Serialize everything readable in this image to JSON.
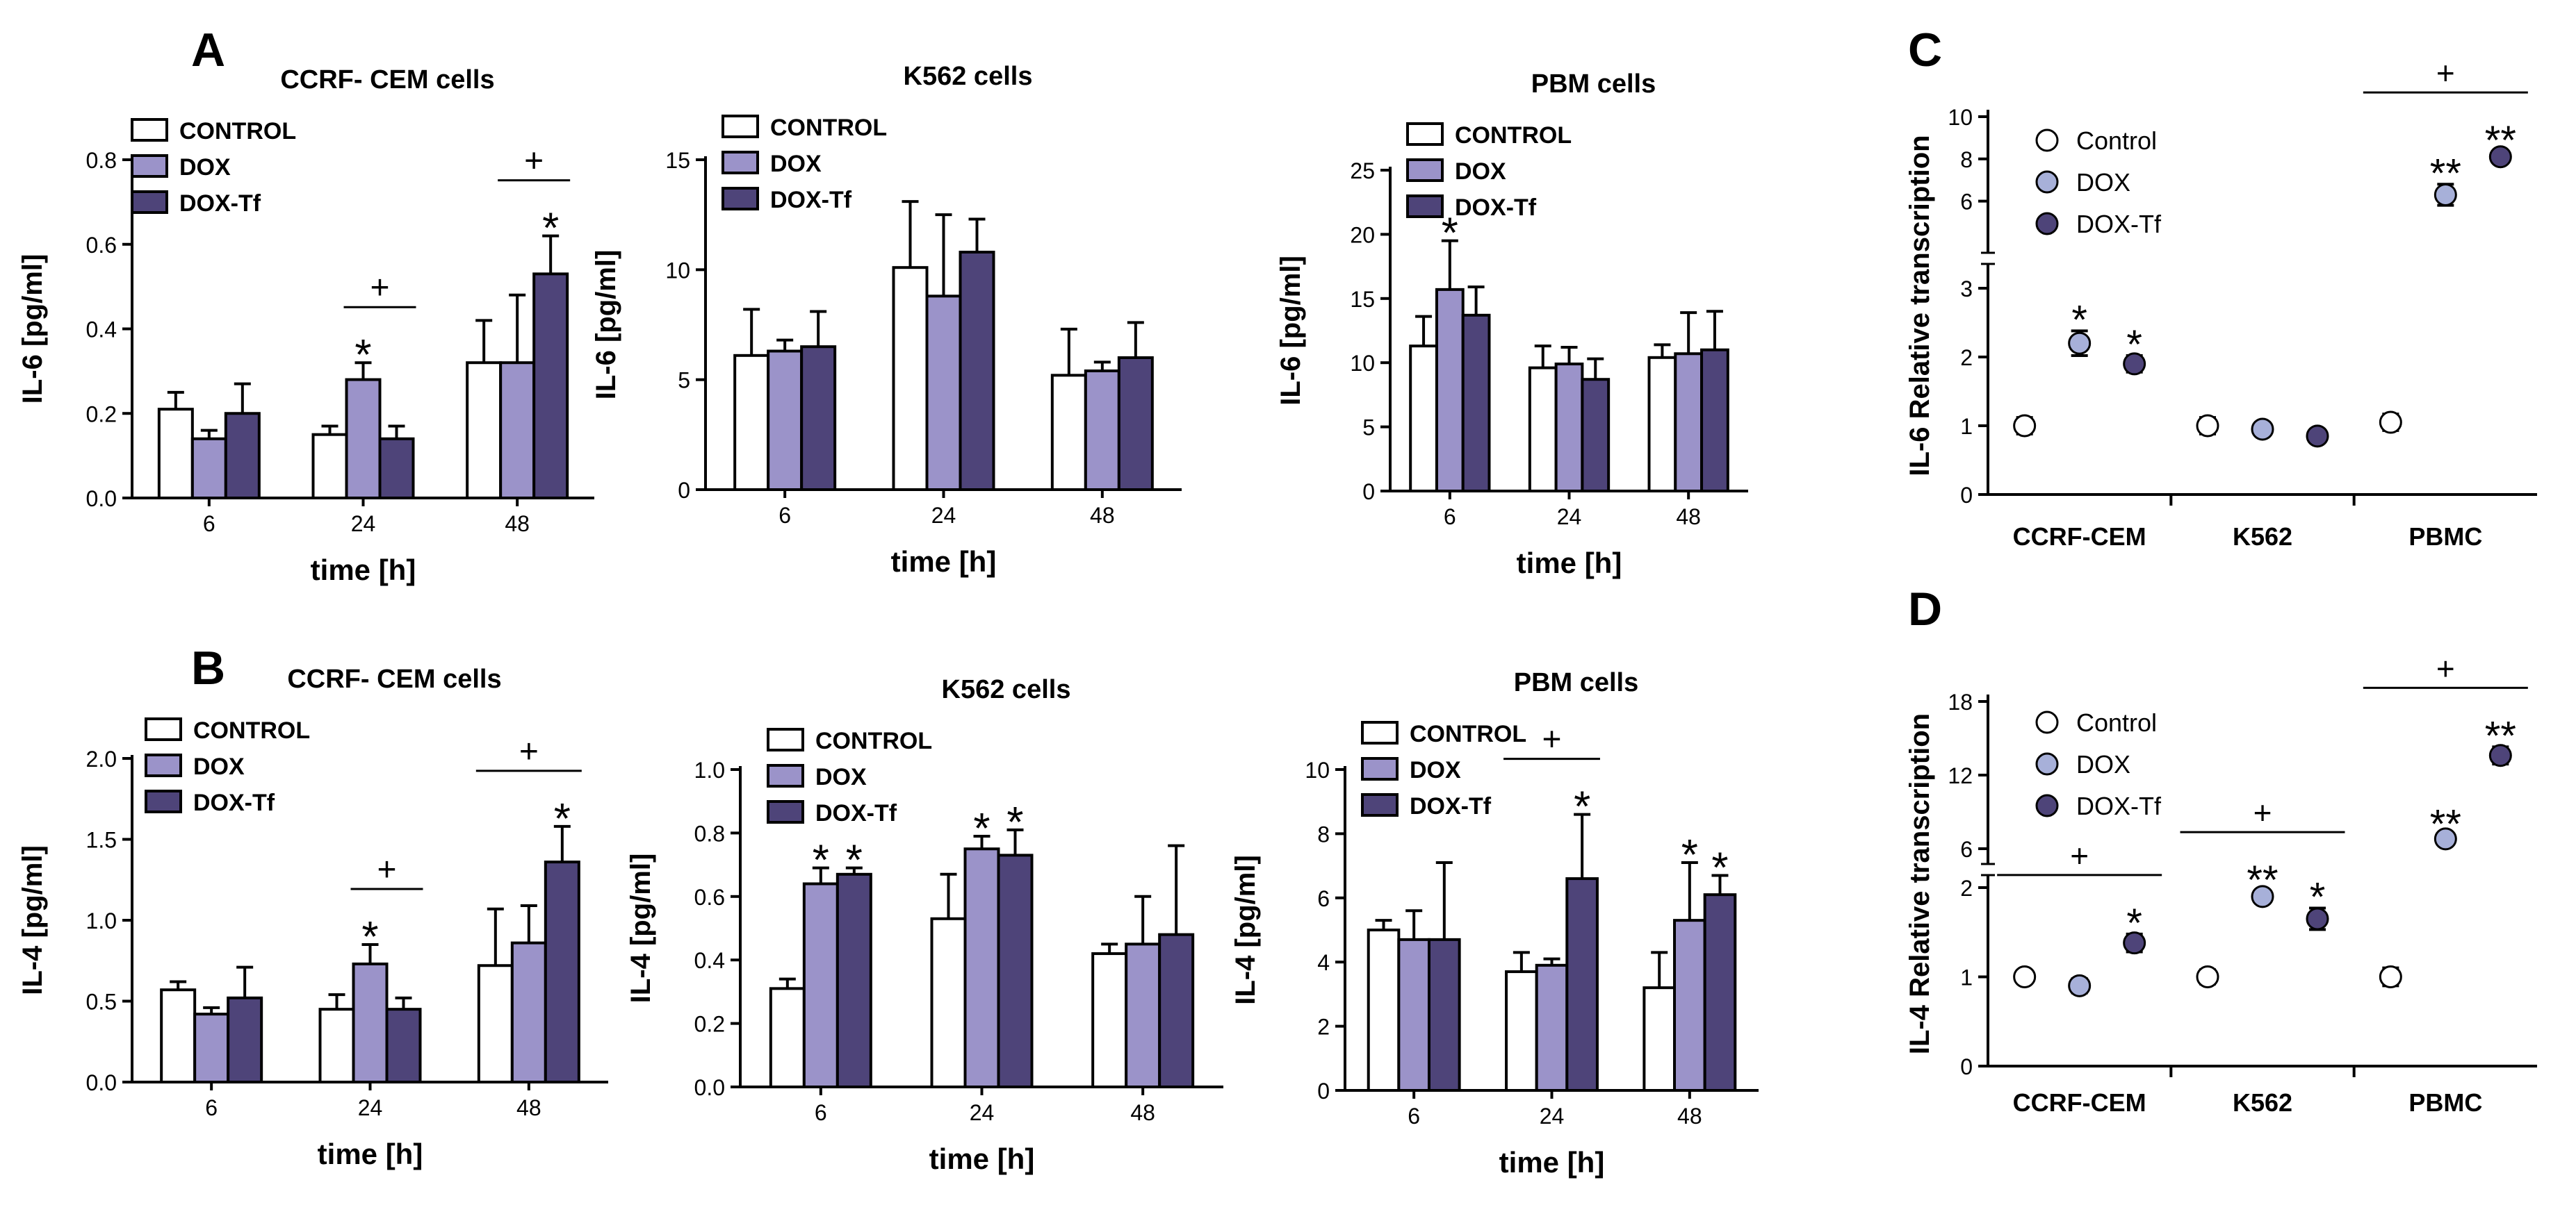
{
  "figure": {
    "panel_letters": [
      "A",
      "B",
      "C",
      "D"
    ],
    "colors": {
      "control": "#ffffff",
      "dox": "#9b93c9",
      "doxtf": "#4e4479",
      "axis": "#000000"
    }
  },
  "chart_data": [
    {
      "id": "A1",
      "panel": "A",
      "type": "bar",
      "title": "CCRF- CEM cells",
      "xlabel": "time [h]",
      "ylabel": "IL-6 [pg/ml]",
      "categories": [
        "6",
        "24",
        "48"
      ],
      "ylim": [
        0,
        0.8
      ],
      "yticks": [
        0,
        0.2,
        0.4,
        0.6,
        0.8
      ],
      "ytick_labels": [
        "0.0",
        "0.2",
        "0.4",
        "0.6",
        "0.8"
      ],
      "legend": [
        "CONTROL",
        "DOX",
        "DOX-Tf"
      ],
      "series": [
        {
          "name": "CONTROL",
          "values": [
            0.21,
            0.15,
            0.32
          ],
          "errors": [
            0.04,
            0.02,
            0.1
          ]
        },
        {
          "name": "DOX",
          "values": [
            0.14,
            0.28,
            0.32
          ],
          "errors": [
            0.02,
            0.04,
            0.16
          ]
        },
        {
          "name": "DOX-Tf",
          "values": [
            0.2,
            0.14,
            0.53
          ],
          "errors": [
            0.07,
            0.03,
            0.09
          ]
        }
      ],
      "star_marks": [
        {
          "group": 1,
          "series": 1,
          "text": "*"
        },
        {
          "group": 2,
          "series": 2,
          "text": "*"
        }
      ],
      "plus_marks": [
        {
          "from": [
            1,
            1
          ],
          "to": [
            1,
            2
          ],
          "text": "+"
        },
        {
          "from": [
            2,
            1
          ],
          "to": [
            2,
            2
          ],
          "text": "+"
        }
      ]
    },
    {
      "id": "A2",
      "panel": "A",
      "type": "bar",
      "title": "K562 cells",
      "xlabel": "time [h]",
      "ylabel": "IL-6 [pg/ml]",
      "categories": [
        "6",
        "24",
        "48"
      ],
      "ylim": [
        0,
        15
      ],
      "yticks": [
        0,
        5,
        10,
        15
      ],
      "ytick_labels": [
        "0",
        "5",
        "10",
        "15"
      ],
      "legend": [
        "CONTROL",
        "DOX",
        "DOX-Tf"
      ],
      "series": [
        {
          "name": "CONTROL",
          "values": [
            6.1,
            10.1,
            5.2
          ],
          "errors": [
            2.1,
            3.0,
            2.1
          ]
        },
        {
          "name": "DOX",
          "values": [
            6.3,
            8.8,
            5.4
          ],
          "errors": [
            0.5,
            3.7,
            0.4
          ]
        },
        {
          "name": "DOX-Tf",
          "values": [
            6.5,
            10.8,
            6.0
          ],
          "errors": [
            1.6,
            1.5,
            1.6
          ]
        }
      ],
      "star_marks": [],
      "plus_marks": []
    },
    {
      "id": "A3",
      "panel": "A",
      "type": "bar",
      "title": "PBM cells",
      "xlabel": "time [h]",
      "ylabel": "IL-6 [pg/ml]",
      "categories": [
        "6",
        "24",
        "48"
      ],
      "ylim": [
        0,
        25
      ],
      "yticks": [
        0,
        5,
        10,
        15,
        20,
        25
      ],
      "ytick_labels": [
        "0",
        "5",
        "10",
        "15",
        "20",
        "25"
      ],
      "legend": [
        "CONTROL",
        "DOX",
        "DOX-Tf"
      ],
      "series": [
        {
          "name": "CONTROL",
          "values": [
            11.3,
            9.6,
            10.4
          ],
          "errors": [
            2.3,
            1.7,
            1.0
          ]
        },
        {
          "name": "DOX",
          "values": [
            15.7,
            9.9,
            10.7
          ],
          "errors": [
            3.8,
            1.3,
            3.2
          ]
        },
        {
          "name": "DOX-Tf",
          "values": [
            13.7,
            8.7,
            11.0
          ],
          "errors": [
            2.2,
            1.6,
            3.0
          ]
        }
      ],
      "star_marks": [
        {
          "group": 0,
          "series": 1,
          "text": "*"
        }
      ],
      "plus_marks": []
    },
    {
      "id": "B1",
      "panel": "B",
      "type": "bar",
      "title": "CCRF- CEM cells",
      "xlabel": "time [h]",
      "ylabel": "IL-4 [pg/ml]",
      "categories": [
        "6",
        "24",
        "48"
      ],
      "ylim": [
        0,
        2.0
      ],
      "yticks": [
        0,
        0.5,
        1.0,
        1.5,
        2.0
      ],
      "ytick_labels": [
        "0.0",
        "0.5",
        "1.0",
        "1.5",
        "2.0"
      ],
      "legend": [
        "CONTROL",
        "DOX",
        "DOX-Tf"
      ],
      "series": [
        {
          "name": "CONTROL",
          "values": [
            0.57,
            0.45,
            0.72
          ],
          "errors": [
            0.05,
            0.09,
            0.35
          ]
        },
        {
          "name": "DOX",
          "values": [
            0.42,
            0.73,
            0.86
          ],
          "errors": [
            0.04,
            0.12,
            0.23
          ]
        },
        {
          "name": "DOX-Tf",
          "values": [
            0.52,
            0.45,
            1.36
          ],
          "errors": [
            0.19,
            0.07,
            0.22
          ]
        }
      ],
      "star_marks": [
        {
          "group": 1,
          "series": 1,
          "text": "*"
        },
        {
          "group": 2,
          "series": 2,
          "text": "*"
        }
      ],
      "plus_marks": [
        {
          "from": [
            1,
            1
          ],
          "to": [
            1,
            2
          ],
          "text": "+"
        },
        {
          "from": [
            2,
            0
          ],
          "to": [
            2,
            2
          ],
          "text": "+"
        }
      ]
    },
    {
      "id": "B2",
      "panel": "B",
      "type": "bar",
      "title": "K562 cells",
      "xlabel": "time [h]",
      "ylabel": "IL-4 [pg/ml]",
      "categories": [
        "6",
        "24",
        "48"
      ],
      "ylim": [
        0,
        1.0
      ],
      "yticks": [
        0,
        0.2,
        0.4,
        0.6,
        0.8,
        1.0
      ],
      "ytick_labels": [
        "0.0",
        "0.2",
        "0.4",
        "0.6",
        "0.8",
        "1.0"
      ],
      "legend": [
        "CONTROL",
        "DOX",
        "DOX-Tf"
      ],
      "series": [
        {
          "name": "CONTROL",
          "values": [
            0.31,
            0.53,
            0.42
          ],
          "errors": [
            0.03,
            0.14,
            0.03
          ]
        },
        {
          "name": "DOX",
          "values": [
            0.64,
            0.75,
            0.45
          ],
          "errors": [
            0.05,
            0.04,
            0.15
          ]
        },
        {
          "name": "DOX-Tf",
          "values": [
            0.67,
            0.73,
            0.48
          ],
          "errors": [
            0.02,
            0.08,
            0.28
          ]
        }
      ],
      "star_marks": [
        {
          "group": 0,
          "series": 1,
          "text": "*"
        },
        {
          "group": 0,
          "series": 2,
          "text": "*"
        },
        {
          "group": 1,
          "series": 1,
          "text": "*"
        },
        {
          "group": 1,
          "series": 2,
          "text": "*"
        }
      ],
      "plus_marks": []
    },
    {
      "id": "B3",
      "panel": "B",
      "type": "bar",
      "title": "PBM cells",
      "xlabel": "time [h]",
      "ylabel": "IL-4 [pg/ml]",
      "categories": [
        "6",
        "24",
        "48"
      ],
      "ylim": [
        0,
        10
      ],
      "yticks": [
        0,
        2,
        4,
        6,
        8,
        10
      ],
      "ytick_labels": [
        "0",
        "2",
        "4",
        "6",
        "8",
        "10"
      ],
      "legend": [
        "CONTROL",
        "DOX",
        "DOX-Tf"
      ],
      "series": [
        {
          "name": "CONTROL",
          "values": [
            5.0,
            3.7,
            3.2
          ],
          "errors": [
            0.3,
            0.6,
            1.1
          ]
        },
        {
          "name": "DOX",
          "values": [
            4.7,
            3.9,
            5.3
          ],
          "errors": [
            0.9,
            0.2,
            1.8
          ]
        },
        {
          "name": "DOX-Tf",
          "values": [
            4.7,
            6.6,
            6.1
          ],
          "errors": [
            2.4,
            2.0,
            0.6
          ]
        }
      ],
      "star_marks": [
        {
          "group": 1,
          "series": 2,
          "text": "*"
        },
        {
          "group": 2,
          "series": 1,
          "text": "*"
        },
        {
          "group": 2,
          "series": 2,
          "text": "*"
        }
      ],
      "plus_marks": [
        {
          "from": [
            1,
            0
          ],
          "to": [
            1,
            2
          ],
          "text": "+"
        }
      ]
    },
    {
      "id": "C",
      "panel": "C",
      "type": "scatter",
      "title": "",
      "xlabel": "",
      "ylabel": "IL-6 Relative transcription",
      "categories": [
        "CCRF-CEM",
        "K562",
        "PBMC"
      ],
      "legend": [
        "Control",
        "DOX",
        "DOX-Tf"
      ],
      "axis_break": {
        "lower": [
          0,
          3
        ],
        "upper": [
          5,
          10
        ]
      },
      "yticks_lower": [
        0,
        1,
        2,
        3
      ],
      "ytick_labels_lower": [
        "0",
        "1",
        "2",
        "3"
      ],
      "yticks_upper": [
        6,
        8,
        10
      ],
      "ytick_labels_upper": [
        "6",
        "8",
        "10"
      ],
      "series": [
        {
          "name": "Control",
          "values": [
            1.0,
            1.0,
            1.05
          ],
          "errors": [
            0.12,
            0.12,
            0.12
          ]
        },
        {
          "name": "DOX",
          "values": [
            2.2,
            0.95,
            6.3
          ],
          "errors": [
            0.18,
            0.08,
            0.5
          ]
        },
        {
          "name": "DOX-Tf",
          "values": [
            1.9,
            0.85,
            8.1
          ],
          "errors": [
            0.12,
            0.06,
            0.25
          ]
        }
      ],
      "star_marks": [
        {
          "group": 0,
          "series": 1,
          "text": "*"
        },
        {
          "group": 0,
          "series": 2,
          "text": "*"
        },
        {
          "group": 2,
          "series": 1,
          "text": "**"
        },
        {
          "group": 2,
          "series": 2,
          "text": "**"
        }
      ],
      "plus_marks": [
        {
          "group": 2,
          "text": "+"
        }
      ]
    },
    {
      "id": "D",
      "panel": "D",
      "type": "scatter",
      "title": "",
      "xlabel": "",
      "ylabel": "IL-4 Relative transcription",
      "categories": [
        "CCRF-CEM",
        "K562",
        "PBMC"
      ],
      "legend": [
        "Control",
        "DOX",
        "DOX-Tf"
      ],
      "axis_break": {
        "lower": [
          0,
          2
        ],
        "upper": [
          6,
          18
        ]
      },
      "yticks_lower": [
        0,
        1,
        2
      ],
      "ytick_labels_lower": [
        "0",
        "1",
        "2"
      ],
      "yticks_upper": [
        6,
        12,
        18
      ],
      "ytick_labels_upper": [
        "6",
        "12",
        "18"
      ],
      "series": [
        {
          "name": "Control",
          "values": [
            1.0,
            1.0,
            1.0
          ],
          "errors": [
            0.06,
            0.08,
            0.1
          ]
        },
        {
          "name": "DOX",
          "values": [
            0.9,
            1.9,
            6.8
          ],
          "errors": [
            0.08,
            0.06,
            0.3
          ]
        },
        {
          "name": "DOX-Tf",
          "values": [
            1.38,
            1.65,
            13.6
          ],
          "errors": [
            0.1,
            0.12,
            0.7
          ]
        }
      ],
      "star_marks": [
        {
          "group": 0,
          "series": 2,
          "text": "*"
        },
        {
          "group": 1,
          "series": 1,
          "text": "**"
        },
        {
          "group": 1,
          "series": 2,
          "text": "*"
        },
        {
          "group": 2,
          "series": 1,
          "text": "**"
        },
        {
          "group": 2,
          "series": 2,
          "text": "**"
        }
      ],
      "plus_marks": [
        {
          "group": 0,
          "text": "+"
        },
        {
          "group": 1,
          "text": "+"
        },
        {
          "group": 2,
          "text": "+"
        }
      ]
    }
  ]
}
